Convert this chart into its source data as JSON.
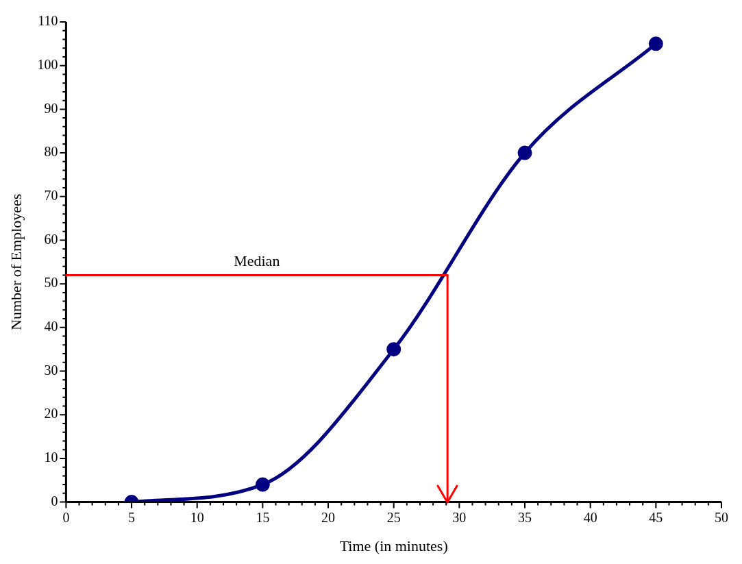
{
  "chart_data": {
    "type": "line",
    "xlabel": "Time (in minutes)",
    "ylabel": "Number of Employees",
    "xlim": [
      0,
      50
    ],
    "ylim": [
      0,
      110
    ],
    "xticks": [
      0,
      {
        "value": 1,
        "label": null
      },
      {
        "value": 2,
        "label": null
      },
      {
        "value": 3,
        "label": null
      },
      {
        "value": 4,
        "label": null
      },
      5,
      {
        "value": 6,
        "label": null
      },
      {
        "value": 7,
        "label": null
      },
      {
        "value": 8,
        "label": null
      },
      {
        "value": 9,
        "label": null
      },
      10,
      {
        "value": 11,
        "label": null
      },
      {
        "value": 12,
        "label": null
      },
      {
        "value": 13,
        "label": null
      },
      {
        "value": 14,
        "label": null
      },
      15,
      {
        "value": 16,
        "label": null
      },
      {
        "value": 17,
        "label": null
      },
      {
        "value": 18,
        "label": null
      },
      {
        "value": 19,
        "label": null
      },
      20,
      {
        "value": 21,
        "label": null
      },
      {
        "value": 22,
        "label": null
      },
      {
        "value": 23,
        "label": null
      },
      {
        "value": 24,
        "label": null
      },
      25,
      {
        "value": 26,
        "label": null
      },
      {
        "value": 27,
        "label": null
      },
      {
        "value": 28,
        "label": null
      },
      {
        "value": 29,
        "label": null
      },
      30,
      {
        "value": 31,
        "label": null
      },
      {
        "value": 32,
        "label": null
      },
      {
        "value": 33,
        "label": null
      },
      {
        "value": 34,
        "label": null
      },
      35,
      {
        "value": 36,
        "label": null
      },
      {
        "value": 37,
        "label": null
      },
      {
        "value": 38,
        "label": null
      },
      {
        "value": 39,
        "label": null
      },
      40,
      {
        "value": 41,
        "label": null
      },
      {
        "value": 42,
        "label": null
      },
      {
        "value": 43,
        "label": null
      },
      {
        "value": 44,
        "label": null
      },
      45,
      {
        "value": 46,
        "label": null
      },
      {
        "value": 47,
        "label": null
      },
      {
        "value": 48,
        "label": null
      },
      {
        "value": 49,
        "label": null
      },
      50
    ],
    "yticks": [
      0,
      {
        "value": 2,
        "label": null
      },
      {
        "value": 4,
        "label": null
      },
      {
        "value": 6,
        "label": null
      },
      {
        "value": 8,
        "label": null
      },
      10,
      {
        "value": 12,
        "label": null
      },
      {
        "value": 14,
        "label": null
      },
      {
        "value": 16,
        "label": null
      },
      {
        "value": 18,
        "label": null
      },
      20,
      {
        "value": 22,
        "label": null
      },
      {
        "value": 24,
        "label": null
      },
      {
        "value": 26,
        "label": null
      },
      {
        "value": 28,
        "label": null
      },
      30,
      {
        "value": 32,
        "label": null
      },
      {
        "value": 34,
        "label": null
      },
      {
        "value": 36,
        "label": null
      },
      {
        "value": 38,
        "label": null
      },
      40,
      {
        "value": 42,
        "label": null
      },
      {
        "value": 44,
        "label": null
      },
      {
        "value": 46,
        "label": null
      },
      {
        "value": 48,
        "label": null
      },
      50,
      {
        "value": 52,
        "label": null
      },
      {
        "value": 54,
        "label": null
      },
      {
        "value": 56,
        "label": null
      },
      {
        "value": 58,
        "label": null
      },
      60,
      {
        "value": 62,
        "label": null
      },
      {
        "value": 64,
        "label": null
      },
      {
        "value": 66,
        "label": null
      },
      {
        "value": 68,
        "label": null
      },
      70,
      {
        "value": 72,
        "label": null
      },
      {
        "value": 74,
        "label": null
      },
      {
        "value": 76,
        "label": null
      },
      {
        "value": 78,
        "label": null
      },
      80,
      {
        "value": 82,
        "label": null
      },
      {
        "value": 84,
        "label": null
      },
      {
        "value": 86,
        "label": null
      },
      {
        "value": 88,
        "label": null
      },
      90,
      {
        "value": 92,
        "label": null
      },
      {
        "value": 94,
        "label": null
      },
      {
        "value": 96,
        "label": null
      },
      {
        "value": 98,
        "label": null
      },
      100,
      {
        "value": 102,
        "label": null
      },
      {
        "value": 104,
        "label": null
      },
      {
        "value": 106,
        "label": null
      },
      {
        "value": 108,
        "label": null
      },
      110
    ],
    "grid": false,
    "legend": false,
    "marker": "circle",
    "line_style": "solid",
    "ref_lines": [
      {
        "axis": "y",
        "value": 52,
        "label": "Median",
        "color": "#ff0000"
      },
      {
        "axis": "x",
        "value": 29.1,
        "color": "#ff0000"
      }
    ],
    "series": [
      {
        "color": "#000080",
        "x": [
          5,
          15,
          25,
          35,
          45
        ],
        "values": [
          0,
          4,
          35,
          80,
          105
        ]
      }
    ]
  }
}
